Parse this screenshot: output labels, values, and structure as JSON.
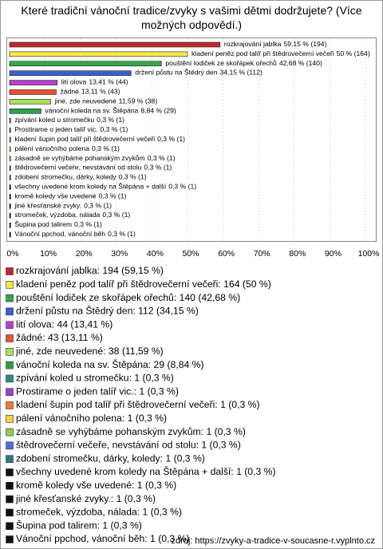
{
  "chart_data": {
    "type": "hbar",
    "title": "Které tradiční vánoční tradice/zvyky s vašimi dětmi dodržujete? (Více možných odpovědí.)",
    "categories": [
      "rozkrajování jablka",
      "kladení peněz pod talíř při štědrovečerní večeři",
      "pouštění lodiček ze skořápek ořechů",
      "držení půstu na Štědrý den",
      "lití olova",
      "žádné",
      "jiné, zde neuvedené",
      "vánoční koleda na sv. Štěpána",
      "zpívání koled u stromečku",
      "Prostirame o jeden talíř vic.",
      "kladení šupin pod talíř při štědrovečerní večeři",
      "pálení vánočního polena",
      "zásadně se vyhýbáme pohanským zvykům",
      "štědrovečerní večeře, nevstávání od stolu",
      "zdobení stromečku, dárky, koledy",
      "všechny uvedené krom koledy na Štěpána + další",
      "kromě koledy vše uvedené",
      "jiné křesťanské zvyky.",
      "stromeček, výzdoba, nálada",
      "Šupina pod talirem",
      "Vánoční ppchod, vánoční běh"
    ],
    "values": [
      59.15,
      50,
      42.68,
      34.15,
      13.41,
      13.11,
      11.59,
      8.84,
      0.3,
      0.3,
      0.3,
      0.3,
      0.3,
      0.3,
      0.3,
      0.3,
      0.3,
      0.3,
      0.3,
      0.3,
      0.3
    ],
    "value_labels": [
      "59,15 % (194)",
      "50 % (164)",
      "42,68 % (140)",
      "34,15 % (112)",
      "13,41 % (44)",
      "13,11 % (43)",
      "11,59 % (38)",
      "8,84 % (29)",
      "0,3 % (1)",
      "0,3 % (1)",
      "0,3 % (1)",
      "0,3 % (1)",
      "0,3 % (1)",
      "0,3 % (1)",
      "0,3 % (1)",
      "0,3 % (1)",
      "0,3 % (1)",
      "0,3 % (1)",
      "0,3 % (1)",
      "0,3 % (1)",
      "0,3 % (1)"
    ],
    "legend_labels": [
      "rozkrajování jablka: 194 (59,15 %)",
      "kladení peněz pod talíř při štědrovečerní večeři: 164 (50 %)",
      "pouštění lodiček ze skořápek ořechů: 140 (42,68 %)",
      "držení půstu na Štědrý den: 112 (34,15 %)",
      "lití olova: 44 (13,41 %)",
      "žádné: 43 (13,11 %)",
      "jiné, zde neuvedené: 38 (11,59 %)",
      "vánoční koleda na sv. Štěpána: 29 (8,84 %)",
      "zpívání koled u stromečku: 1 (0,3 %)",
      "Prostirame o jeden talíř vic.: 1 (0,3 %)",
      "kladení šupin pod talíř při štědrovečerní večeři: 1 (0,3 %)",
      "pálení vánočního polena: 1 (0,3 %)",
      "zásadně se vyhýbáme pohanským zvykům: 1 (0,3 %)",
      "štědrovečerní večeře, nevstávání od stolu: 1 (0,3 %)",
      "zdobení stromečku, dárky, koledy: 1 (0,3 %)",
      "všechny uvedené krom koledy na Štěpána + další: 1 (0,3 %)",
      "kromě koledy vše uvedené: 1 (0,3 %)",
      "jiné křesťanské zvyky.: 1 (0,3 %)",
      "stromeček, výzdoba, nálada: 1 (0,3 %)",
      "Šupina pod talirem: 1 (0,3 %)",
      "Vánoční ppchod, vánoční běh: 1 (0,3 %)"
    ],
    "colors": [
      "#c0272d",
      "#f7e74a",
      "#34a846",
      "#3a5fcd",
      "#b83fd1",
      "#e8522a",
      "#a8e05f",
      "#2e9e4f",
      "#2a8c8c",
      "#9b3fc9",
      "#f07a2b",
      "#f2d43a",
      "#8fd14f",
      "#4a6fd8",
      "#2d7a7a",
      "#111111",
      "#111111",
      "#111111",
      "#111111",
      "#111111",
      "#111111"
    ],
    "xlim": [
      0,
      100
    ],
    "xticks": [
      {
        "value": 0,
        "label": "0%"
      },
      {
        "value": 10,
        "label": "10%"
      },
      {
        "value": 20,
        "label": "20%"
      },
      {
        "value": 30,
        "label": "30%"
      },
      {
        "value": 40,
        "label": "40%"
      },
      {
        "value": 50,
        "label": "50%"
      },
      {
        "value": 60,
        "label": "60%"
      },
      {
        "value": 70,
        "label": "70%"
      },
      {
        "value": 80,
        "label": "80%"
      },
      {
        "value": 90,
        "label": "90%"
      },
      {
        "value": 100,
        "label": "100%"
      }
    ],
    "grid": true,
    "source": "zdroj: https://zvyky-a-tradice-v-soucasne-r.vyplnto.cz"
  }
}
